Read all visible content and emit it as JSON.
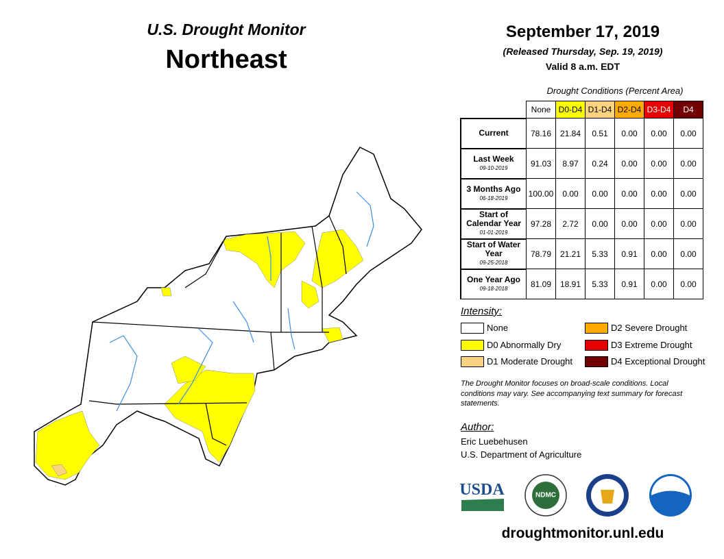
{
  "header": {
    "title": "U.S. Drought Monitor",
    "region": "Northeast",
    "date": "September 17, 2019",
    "released": "(Released Thursday, Sep. 19, 2019)",
    "valid": "Valid 8 a.m. EDT"
  },
  "table": {
    "caption": "Drought Conditions (Percent Area)",
    "columns": [
      {
        "label": "None",
        "color": "#ffffff",
        "text": "#000000"
      },
      {
        "label": "D0-D4",
        "color": "#ffff00",
        "text": "#000000"
      },
      {
        "label": "D1-D4",
        "color": "#fcd37f",
        "text": "#000000"
      },
      {
        "label": "D2-D4",
        "color": "#ffaa00",
        "text": "#000000"
      },
      {
        "label": "D3-D4",
        "color": "#e60000",
        "text": "#ffffff"
      },
      {
        "label": "D4",
        "color": "#730000",
        "text": "#ffffff"
      }
    ],
    "rows": [
      {
        "label": "Current",
        "cells": [
          "78.16",
          "21.84",
          "0.51",
          "0.00",
          "0.00",
          "0.00"
        ]
      },
      {
        "label": "Last Week",
        "date": "09-10-2019",
        "cells": [
          "91.03",
          "8.97",
          "0.24",
          "0.00",
          "0.00",
          "0.00"
        ]
      },
      {
        "label": "3 Months Ago",
        "date": "06-18-2019",
        "cells": [
          "100.00",
          "0.00",
          "0.00",
          "0.00",
          "0.00",
          "0.00"
        ]
      },
      {
        "label": "Start of Calendar Year",
        "date": "01-01-2019",
        "cells": [
          "97.28",
          "2.72",
          "0.00",
          "0.00",
          "0.00",
          "0.00"
        ]
      },
      {
        "label": "Start of Water Year",
        "date": "09-25-2018",
        "cells": [
          "78.79",
          "21.21",
          "5.33",
          "0.91",
          "0.00",
          "0.00"
        ]
      },
      {
        "label": "One Year Ago",
        "date": "09-18-2018",
        "cells": [
          "81.09",
          "18.91",
          "5.33",
          "0.91",
          "0.00",
          "0.00"
        ]
      }
    ]
  },
  "legend": {
    "title": "Intensity:",
    "items": [
      {
        "label": "None",
        "color": "#ffffff"
      },
      {
        "label": "D0 Abnormally Dry",
        "color": "#ffff00"
      },
      {
        "label": "D1 Moderate Drought",
        "color": "#fcd37f"
      },
      {
        "label": "D2 Severe Drought",
        "color": "#ffaa00"
      },
      {
        "label": "D3 Extreme Drought",
        "color": "#e60000"
      },
      {
        "label": "D4 Exceptional Drought",
        "color": "#730000"
      }
    ]
  },
  "note": "The Drought Monitor focuses on broad-scale conditions. Local conditions may vary. See accompanying text summary for forecast statements.",
  "author": {
    "title": "Author:",
    "name": "Eric Luebehusen",
    "org": "U.S. Department of Agriculture"
  },
  "logos": [
    "USDA",
    "NDMC",
    "NOAA"
  ],
  "url": "droughtmonitor.unl.edu"
}
